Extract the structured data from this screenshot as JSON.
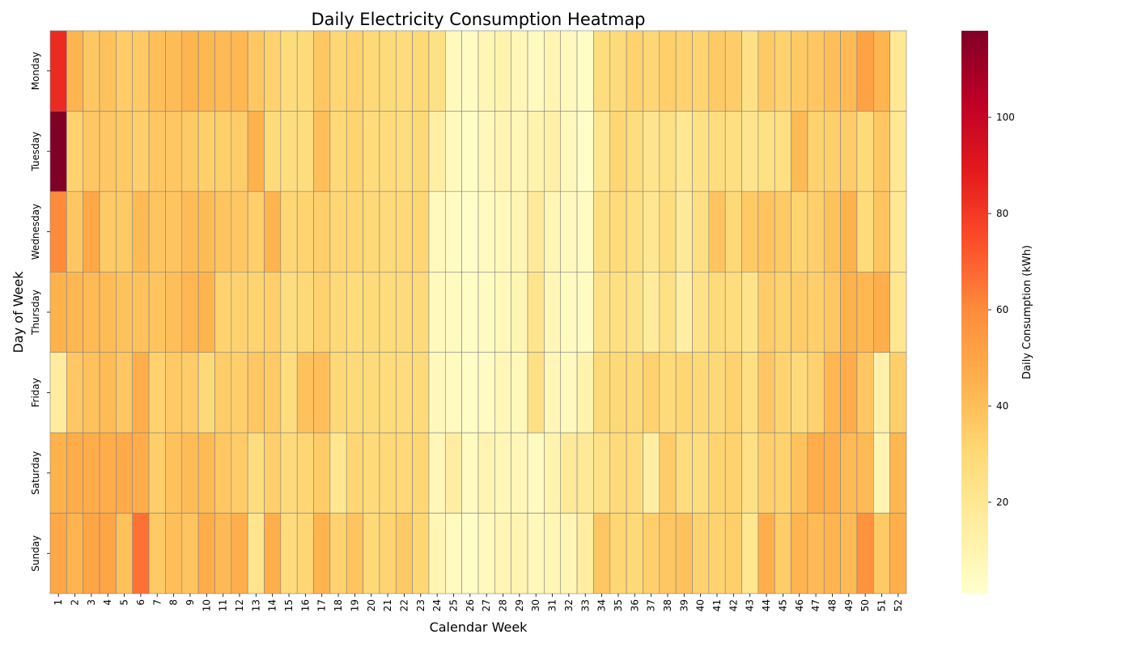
{
  "chart_data": {
    "type": "heatmap",
    "title": "Daily Electricity Consumption Heatmap",
    "xlabel": "Calendar Week",
    "ylabel": "Day of Week",
    "colorbar_label": "Daily Consumption (kWh)",
    "colormap": "YlOrRd",
    "vmin": 1,
    "vmax": 118,
    "colorbar_ticks": [
      20,
      40,
      60,
      80,
      100
    ],
    "grid_line_color": "#808080",
    "x_categories": [
      "1",
      "2",
      "3",
      "4",
      "5",
      "6",
      "7",
      "8",
      "9",
      "10",
      "11",
      "12",
      "13",
      "14",
      "15",
      "16",
      "17",
      "18",
      "19",
      "20",
      "21",
      "22",
      "23",
      "24",
      "25",
      "26",
      "27",
      "28",
      "29",
      "30",
      "31",
      "32",
      "33",
      "34",
      "35",
      "36",
      "37",
      "38",
      "39",
      "40",
      "41",
      "42",
      "43",
      "44",
      "45",
      "46",
      "47",
      "48",
      "49",
      "50",
      "51",
      "52"
    ],
    "y_categories": [
      "Monday",
      "Tuesday",
      "Wednesday",
      "Thursday",
      "Friday",
      "Saturday",
      "Sunday"
    ],
    "values": [
      [
        84,
        44,
        37,
        39,
        35,
        36,
        40,
        41,
        44,
        43,
        42,
        43,
        37,
        33,
        28,
        29,
        37,
        31,
        33,
        30,
        29,
        28,
        30,
        25,
        6,
        4,
        9,
        11,
        8,
        5,
        10,
        6,
        3,
        27,
        29,
        33,
        31,
        34,
        33,
        32,
        36,
        35,
        25,
        36,
        33,
        36,
        37,
        40,
        42,
        51,
        44,
        20
      ],
      [
        118,
        33,
        37,
        37,
        36,
        34,
        37,
        37,
        36,
        34,
        34,
        35,
        45,
        29,
        27,
        27,
        40,
        30,
        32,
        28,
        28,
        27,
        30,
        14,
        6,
        3,
        7,
        10,
        8,
        11,
        13,
        7,
        2,
        21,
        31,
        27,
        22,
        25,
        20,
        24,
        27,
        26,
        22,
        25,
        26,
        42,
        33,
        34,
        35,
        29,
        37,
        20
      ],
      [
        60,
        37,
        49,
        36,
        36,
        42,
        38,
        38,
        41,
        41,
        38,
        37,
        34,
        44,
        31,
        32,
        34,
        31,
        31,
        30,
        29,
        30,
        31,
        6,
        4,
        2,
        5,
        7,
        9,
        18,
        9,
        6,
        4,
        26,
        28,
        26,
        21,
        27,
        18,
        26,
        38,
        30,
        36,
        38,
        36,
        32,
        34,
        39,
        45,
        28,
        38,
        20
      ],
      [
        45,
        43,
        42,
        41,
        39,
        39,
        38,
        40,
        43,
        44,
        33,
        33,
        32,
        34,
        27,
        30,
        33,
        30,
        28,
        29,
        28,
        29,
        29,
        6,
        5,
        3,
        4,
        7,
        9,
        22,
        8,
        5,
        4,
        24,
        26,
        24,
        17,
        25,
        14,
        24,
        29,
        27,
        23,
        35,
        33,
        35,
        34,
        37,
        45,
        43,
        46,
        21
      ],
      [
        16,
        37,
        39,
        41,
        37,
        46,
        33,
        36,
        35,
        30,
        35,
        34,
        37,
        36,
        27,
        39,
        40,
        30,
        29,
        29,
        28,
        28,
        29,
        7,
        5,
        3,
        4,
        8,
        7,
        25,
        8,
        6,
        11,
        29,
        30,
        30,
        33,
        29,
        31,
        30,
        30,
        33,
        26,
        37,
        32,
        29,
        33,
        43,
        47,
        37,
        12,
        34
      ],
      [
        45,
        47,
        47,
        47,
        48,
        47,
        34,
        39,
        41,
        42,
        37,
        35,
        27,
        34,
        29,
        31,
        35,
        21,
        31,
        29,
        30,
        30,
        31,
        8,
        15,
        5,
        10,
        8,
        8,
        5,
        11,
        18,
        19,
        24,
        29,
        28,
        15,
        35,
        27,
        27,
        32,
        33,
        25,
        34,
        33,
        39,
        47,
        46,
        42,
        42,
        10,
        43
      ],
      [
        49,
        44,
        50,
        50,
        39,
        66,
        36,
        40,
        38,
        47,
        42,
        46,
        22,
        46,
        28,
        31,
        44,
        33,
        38,
        30,
        32,
        36,
        31,
        9,
        5,
        3,
        6,
        9,
        10,
        7,
        9,
        9,
        15,
        37,
        31,
        30,
        34,
        37,
        39,
        33,
        33,
        34,
        21,
        46,
        35,
        44,
        42,
        44,
        42,
        57,
        36,
        46
      ]
    ]
  }
}
